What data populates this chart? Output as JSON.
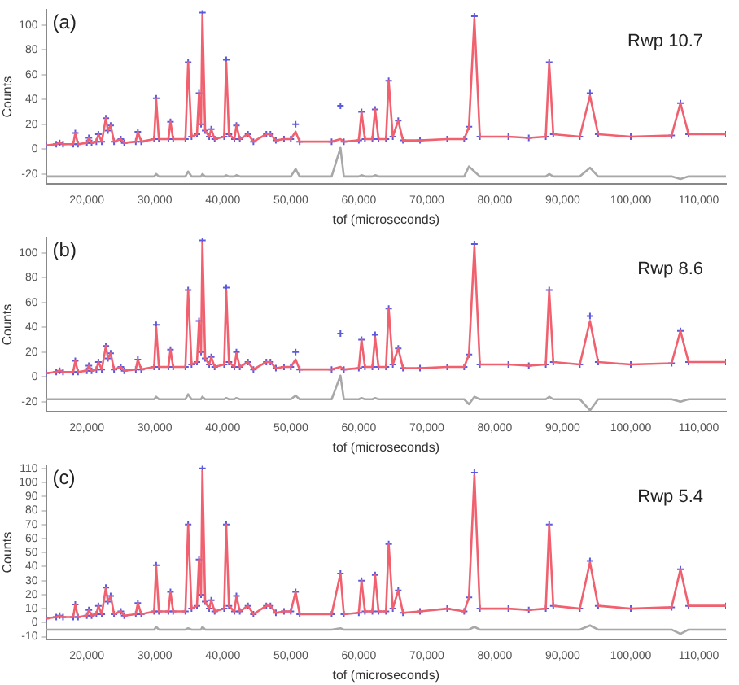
{
  "chart_data": [
    {
      "type": "line",
      "annotations": [
        "(a)",
        "Rwp 10.7"
      ],
      "xlabel": "tof (microseconds)",
      "ylabel": "Counts",
      "grid": false,
      "legend": false,
      "xlim": [
        14000,
        114000
      ],
      "xticks": [
        {
          "value": 20000,
          "label": "20,000"
        },
        {
          "value": 30000,
          "label": "30,000"
        },
        {
          "value": 40000,
          "label": "40,000"
        },
        {
          "value": 50000,
          "label": "50,000"
        },
        {
          "value": 60000,
          "label": "60,000"
        },
        {
          "value": 70000,
          "label": "70,000"
        },
        {
          "value": 80000,
          "label": "80,000"
        },
        {
          "value": 90000,
          "label": "90,000"
        },
        {
          "value": 100000,
          "label": "100,000"
        },
        {
          "value": 110000,
          "label": "110,000"
        }
      ],
      "ylim": [
        -28,
        112
      ],
      "yticks": [
        -20,
        0,
        20,
        40,
        60,
        80,
        100
      ],
      "x": [
        14000,
        15500,
        16000,
        16500,
        18000,
        18300,
        18700,
        20000,
        20300,
        20700,
        21400,
        21700,
        22200,
        22800,
        23100,
        23500,
        24000,
        25000,
        25500,
        27200,
        27500,
        28000,
        29900,
        30200,
        30600,
        32000,
        32300,
        32700,
        34500,
        34900,
        35400,
        36200,
        36500,
        36800,
        37000,
        37400,
        38000,
        38300,
        38800,
        40200,
        40500,
        40900,
        41700,
        42000,
        42500,
        43700,
        44500,
        46400,
        47000,
        47800,
        49000,
        50000,
        50700,
        51300,
        56000,
        57300,
        57800,
        60000,
        60400,
        60900,
        62000,
        62400,
        62900,
        64000,
        64400,
        65000,
        65800,
        66500,
        69000,
        73000,
        75500,
        76200,
        77000,
        77800,
        82000,
        85000,
        87500,
        88000,
        88600,
        92500,
        94000,
        95200,
        100000,
        106000,
        107300,
        108500,
        114000
      ],
      "series": [
        {
          "type": "scatter",
          "marker": "cross",
          "color": "#5a5ae0",
          "values": [
            3,
            4,
            5,
            4,
            4,
            13,
            4,
            5,
            9,
            5,
            6,
            12,
            6,
            25,
            15,
            19,
            6,
            8,
            5,
            6,
            14,
            6,
            8,
            41,
            8,
            8,
            22,
            8,
            8,
            70,
            10,
            12,
            45,
            20,
            110,
            15,
            10,
            16,
            8,
            10,
            72,
            12,
            8,
            19,
            8,
            12,
            6,
            12,
            12,
            7,
            8,
            8,
            20,
            6,
            6,
            35,
            6,
            7,
            30,
            8,
            8,
            32,
            8,
            8,
            55,
            10,
            23,
            7,
            7,
            8,
            8,
            18,
            107,
            10,
            10,
            9,
            10,
            70,
            12,
            10,
            45,
            12,
            10,
            11,
            37,
            12,
            12
          ]
        },
        {
          "type": "line",
          "color": "#f0606e",
          "values": [
            3,
            4,
            5,
            4,
            4,
            13,
            4,
            5,
            9,
            5,
            6,
            12,
            6,
            25,
            15,
            19,
            6,
            8,
            5,
            6,
            14,
            6,
            8,
            40,
            8,
            8,
            22,
            8,
            8,
            70,
            10,
            12,
            45,
            20,
            108,
            15,
            10,
            16,
            8,
            10,
            70,
            12,
            8,
            19,
            8,
            12,
            6,
            12,
            12,
            7,
            8,
            8,
            14,
            6,
            6,
            8,
            6,
            7,
            30,
            8,
            8,
            32,
            8,
            8,
            55,
            10,
            23,
            7,
            7,
            8,
            8,
            18,
            105,
            10,
            10,
            9,
            10,
            70,
            12,
            10,
            43,
            12,
            10,
            11,
            37,
            12,
            12
          ]
        },
        {
          "type": "line",
          "color": "#a8a8a8",
          "values": [
            -22,
            -22,
            -22,
            -22,
            -22,
            -22,
            -22,
            -22,
            -22,
            -22,
            -22,
            -22,
            -22,
            -22,
            -22,
            -22,
            -22,
            -22,
            -22,
            -22,
            -22,
            -22,
            -22,
            -20,
            -22,
            -22,
            -22,
            -22,
            -22,
            -18,
            -22,
            -22,
            -22,
            -22,
            -20,
            -22,
            -22,
            -22,
            -22,
            -22,
            -21,
            -22,
            -22,
            -21,
            -22,
            -22,
            -22,
            -22,
            -22,
            -22,
            -22,
            -22,
            -16,
            -22,
            -22,
            1,
            -22,
            -22,
            -21,
            -22,
            -22,
            -21,
            -22,
            -22,
            -22,
            -22,
            -22,
            -22,
            -22,
            -22,
            -22,
            -14,
            -18,
            -22,
            -22,
            -22,
            -22,
            -20,
            -22,
            -22,
            -15,
            -22,
            -22,
            -22,
            -24,
            -22,
            -22
          ]
        }
      ]
    },
    {
      "type": "line",
      "annotations": [
        "(b)",
        "Rwp 8.6"
      ],
      "xlabel": "tof (microseconds)",
      "ylabel": "Counts",
      "grid": false,
      "legend": false,
      "xlim": [
        14000,
        114000
      ],
      "xticks": [
        {
          "value": 20000,
          "label": "20,000"
        },
        {
          "value": 30000,
          "label": "30,000"
        },
        {
          "value": 40000,
          "label": "40,000"
        },
        {
          "value": 50000,
          "label": "50,000"
        },
        {
          "value": 60000,
          "label": "60,000"
        },
        {
          "value": 70000,
          "label": "70,000"
        },
        {
          "value": 80000,
          "label": "80,000"
        },
        {
          "value": 90000,
          "label": "90,000"
        },
        {
          "value": 100000,
          "label": "100,000"
        },
        {
          "value": 110000,
          "label": "110,000"
        }
      ],
      "ylim": [
        -28,
        112
      ],
      "yticks": [
        -20,
        0,
        20,
        40,
        60,
        80,
        100
      ],
      "x": [
        14000,
        15500,
        16000,
        16500,
        18000,
        18300,
        18700,
        20000,
        20300,
        20700,
        21400,
        21700,
        22200,
        22800,
        23100,
        23500,
        24000,
        25000,
        25500,
        27200,
        27500,
        28000,
        29900,
        30200,
        30600,
        32000,
        32300,
        32700,
        34500,
        34900,
        35400,
        36200,
        36500,
        36800,
        37000,
        37400,
        38000,
        38300,
        38800,
        40200,
        40500,
        40900,
        41700,
        42000,
        42500,
        43700,
        44500,
        46400,
        47000,
        47800,
        49000,
        50000,
        50700,
        51300,
        56000,
        57300,
        57800,
        60000,
        60400,
        60900,
        62000,
        62400,
        62900,
        64000,
        64400,
        65000,
        65800,
        66500,
        69000,
        73000,
        75500,
        76200,
        77000,
        77800,
        82000,
        85000,
        87500,
        88000,
        88600,
        92500,
        94000,
        95200,
        100000,
        106000,
        107300,
        108500,
        114000
      ],
      "series": [
        {
          "type": "scatter",
          "marker": "cross",
          "color": "#5a5ae0",
          "values": [
            3,
            4,
            5,
            4,
            4,
            13,
            4,
            5,
            9,
            5,
            6,
            12,
            6,
            25,
            15,
            19,
            6,
            8,
            5,
            6,
            14,
            6,
            8,
            42,
            8,
            8,
            22,
            8,
            8,
            70,
            10,
            12,
            45,
            20,
            110,
            15,
            10,
            16,
            8,
            10,
            72,
            12,
            8,
            20,
            8,
            12,
            6,
            12,
            12,
            7,
            8,
            8,
            20,
            6,
            6,
            35,
            6,
            7,
            30,
            8,
            8,
            34,
            8,
            8,
            55,
            10,
            23,
            7,
            7,
            8,
            8,
            18,
            107,
            10,
            10,
            9,
            10,
            70,
            12,
            10,
            49,
            12,
            10,
            11,
            37,
            12,
            12
          ]
        },
        {
          "type": "line",
          "color": "#f0606e",
          "values": [
            3,
            4,
            5,
            4,
            4,
            13,
            4,
            5,
            9,
            5,
            6,
            12,
            6,
            25,
            15,
            19,
            6,
            8,
            5,
            6,
            14,
            6,
            8,
            40,
            8,
            8,
            22,
            8,
            8,
            70,
            10,
            12,
            45,
            20,
            108,
            15,
            10,
            16,
            8,
            10,
            70,
            12,
            8,
            19,
            8,
            12,
            6,
            12,
            12,
            7,
            8,
            8,
            14,
            6,
            6,
            8,
            6,
            7,
            30,
            8,
            8,
            32,
            8,
            8,
            55,
            10,
            23,
            7,
            7,
            8,
            8,
            18,
            105,
            10,
            10,
            9,
            10,
            70,
            12,
            10,
            45,
            12,
            10,
            11,
            37,
            12,
            12
          ]
        },
        {
          "type": "line",
          "color": "#a8a8a8",
          "values": [
            -18,
            -18,
            -18,
            -18,
            -18,
            -18,
            -18,
            -18,
            -18,
            -18,
            -18,
            -18,
            -18,
            -18,
            -18,
            -18,
            -18,
            -18,
            -18,
            -18,
            -18,
            -18,
            -18,
            -16,
            -18,
            -18,
            -18,
            -18,
            -18,
            -14,
            -18,
            -18,
            -18,
            -18,
            -16,
            -18,
            -18,
            -18,
            -18,
            -18,
            -17,
            -18,
            -18,
            -17,
            -18,
            -18,
            -18,
            -18,
            -18,
            -18,
            -18,
            -18,
            -15,
            -18,
            -18,
            1,
            -18,
            -18,
            -17,
            -18,
            -18,
            -17,
            -18,
            -18,
            -18,
            -18,
            -18,
            -18,
            -18,
            -18,
            -18,
            -22,
            -16,
            -18,
            -18,
            -18,
            -18,
            -16,
            -18,
            -18,
            -27,
            -18,
            -18,
            -18,
            -20,
            -18,
            -18
          ]
        }
      ]
    },
    {
      "type": "line",
      "annotations": [
        "(c)",
        "Rwp 5.4"
      ],
      "xlabel": "tof (microseconds)",
      "ylabel": "Counts",
      "grid": false,
      "legend": false,
      "xlim": [
        14000,
        114000
      ],
      "xticks": [
        {
          "value": 20000,
          "label": "20,000"
        },
        {
          "value": 30000,
          "label": "30,000"
        },
        {
          "value": 40000,
          "label": "40,000"
        },
        {
          "value": 50000,
          "label": "50,000"
        },
        {
          "value": 60000,
          "label": "60,000"
        },
        {
          "value": 70000,
          "label": "70,000"
        },
        {
          "value": 80000,
          "label": "80,000"
        },
        {
          "value": 90000,
          "label": "90,000"
        },
        {
          "value": 100000,
          "label": "100,000"
        },
        {
          "value": 110000,
          "label": "110,000"
        }
      ],
      "ylim": [
        -12,
        112
      ],
      "yticks": [
        -10,
        0,
        10,
        20,
        30,
        40,
        50,
        60,
        70,
        80,
        90,
        100,
        110
      ],
      "x": [
        14000,
        15500,
        16000,
        16500,
        18000,
        18300,
        18700,
        20000,
        20300,
        20700,
        21400,
        21700,
        22200,
        22800,
        23100,
        23500,
        24000,
        25000,
        25500,
        27200,
        27500,
        28000,
        29900,
        30200,
        30600,
        32000,
        32300,
        32700,
        34500,
        34900,
        35400,
        36200,
        36500,
        36800,
        37000,
        37400,
        38000,
        38300,
        38800,
        40200,
        40500,
        40900,
        41700,
        42000,
        42500,
        43700,
        44500,
        46400,
        47000,
        47800,
        49000,
        50000,
        50700,
        51300,
        56000,
        57300,
        57800,
        60000,
        60400,
        60900,
        62000,
        62400,
        62900,
        64000,
        64400,
        65000,
        65800,
        66500,
        69000,
        73000,
        75500,
        76200,
        77000,
        77800,
        82000,
        85000,
        87500,
        88000,
        88600,
        92500,
        94000,
        95200,
        100000,
        106000,
        107300,
        108500,
        114000
      ],
      "series": [
        {
          "type": "scatter",
          "marker": "cross",
          "color": "#5a5ae0",
          "values": [
            3,
            4,
            5,
            4,
            4,
            13,
            4,
            5,
            9,
            5,
            6,
            12,
            6,
            25,
            15,
            19,
            6,
            8,
            5,
            6,
            14,
            6,
            8,
            41,
            8,
            8,
            22,
            8,
            8,
            70,
            10,
            12,
            45,
            20,
            110,
            15,
            10,
            16,
            8,
            10,
            70,
            12,
            8,
            19,
            8,
            12,
            6,
            12,
            12,
            7,
            8,
            8,
            22,
            6,
            6,
            35,
            6,
            7,
            30,
            8,
            8,
            34,
            8,
            8,
            56,
            10,
            23,
            7,
            8,
            10,
            8,
            18,
            107,
            10,
            10,
            9,
            10,
            70,
            12,
            10,
            44,
            12,
            10,
            11,
            38,
            12,
            12
          ]
        },
        {
          "type": "line",
          "color": "#f0606e",
          "values": [
            3,
            4,
            5,
            4,
            4,
            13,
            4,
            5,
            9,
            5,
            6,
            12,
            6,
            25,
            15,
            19,
            6,
            8,
            5,
            6,
            14,
            6,
            8,
            40,
            8,
            8,
            22,
            8,
            8,
            70,
            10,
            12,
            45,
            20,
            108,
            15,
            10,
            16,
            8,
            10,
            70,
            12,
            8,
            19,
            8,
            12,
            6,
            12,
            12,
            7,
            8,
            8,
            22,
            6,
            6,
            35,
            6,
            7,
            30,
            8,
            8,
            34,
            8,
            8,
            56,
            10,
            23,
            7,
            8,
            10,
            8,
            18,
            105,
            10,
            10,
            9,
            10,
            70,
            12,
            10,
            43,
            12,
            10,
            11,
            38,
            12,
            12
          ]
        },
        {
          "type": "line",
          "color": "#a8a8a8",
          "values": [
            -5,
            -5,
            -5,
            -5,
            -5,
            -5,
            -5,
            -5,
            -5,
            -5,
            -5,
            -5,
            -5,
            -5,
            -5,
            -5,
            -5,
            -5,
            -5,
            -5,
            -5,
            -5,
            -5,
            -3,
            -5,
            -5,
            -5,
            -5,
            -5,
            -4,
            -5,
            -5,
            -5,
            -5,
            -3,
            -5,
            -5,
            -5,
            -5,
            -5,
            -5,
            -5,
            -5,
            -5,
            -5,
            -5,
            -5,
            -5,
            -5,
            -5,
            -5,
            -5,
            -5,
            -5,
            -5,
            -4,
            -5,
            -5,
            -5,
            -5,
            -5,
            -5,
            -5,
            -5,
            -5,
            -5,
            -5,
            -5,
            -5,
            -5,
            -5,
            -5,
            -3,
            -5,
            -5,
            -5,
            -5,
            -5,
            -5,
            -5,
            -2,
            -5,
            -5,
            -5,
            -8,
            -5,
            -5
          ]
        }
      ]
    }
  ]
}
